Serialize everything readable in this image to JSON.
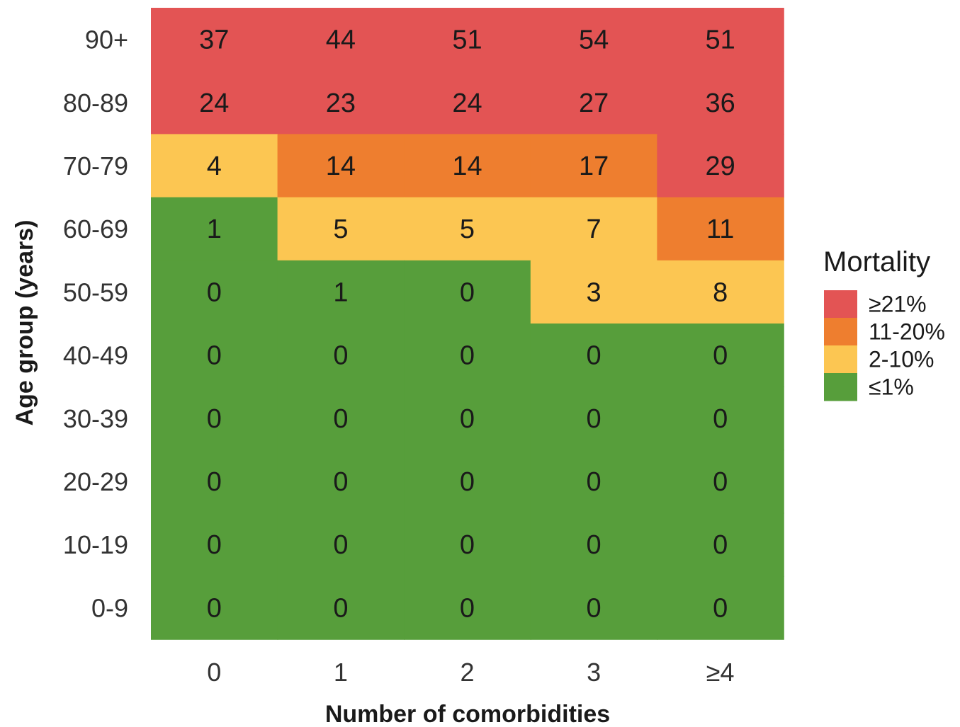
{
  "chart_data": {
    "type": "heatmap",
    "title": "",
    "xlabel": "Number of comorbidities",
    "ylabel": "Age group (years)",
    "x_categories": [
      "0",
      "1",
      "2",
      "3",
      "≥4"
    ],
    "y_categories": [
      "90+",
      "80-89",
      "70-79",
      "60-69",
      "50-59",
      "40-49",
      "30-39",
      "20-29",
      "10-19",
      "0-9"
    ],
    "values": [
      [
        37,
        44,
        51,
        54,
        51
      ],
      [
        24,
        23,
        24,
        27,
        36
      ],
      [
        4,
        14,
        14,
        17,
        29
      ],
      [
        1,
        5,
        5,
        7,
        11
      ],
      [
        0,
        1,
        0,
        3,
        8
      ],
      [
        0,
        0,
        0,
        0,
        0
      ],
      [
        0,
        0,
        0,
        0,
        0
      ],
      [
        0,
        0,
        0,
        0,
        0
      ],
      [
        0,
        0,
        0,
        0,
        0
      ],
      [
        0,
        0,
        0,
        0,
        0
      ]
    ],
    "value_unit": "%",
    "legend": {
      "title": "Mortality",
      "placement": "right",
      "bins": [
        {
          "label": "≥21%",
          "min": 21,
          "color": "#e35454"
        },
        {
          "label": "11-20%",
          "min": 11,
          "color": "#ee7e2f"
        },
        {
          "label": "2-10%",
          "min": 2,
          "color": "#fcc652"
        },
        {
          "label": "≤1%",
          "min": null,
          "color": "#579e3b"
        }
      ]
    },
    "grid": false
  }
}
